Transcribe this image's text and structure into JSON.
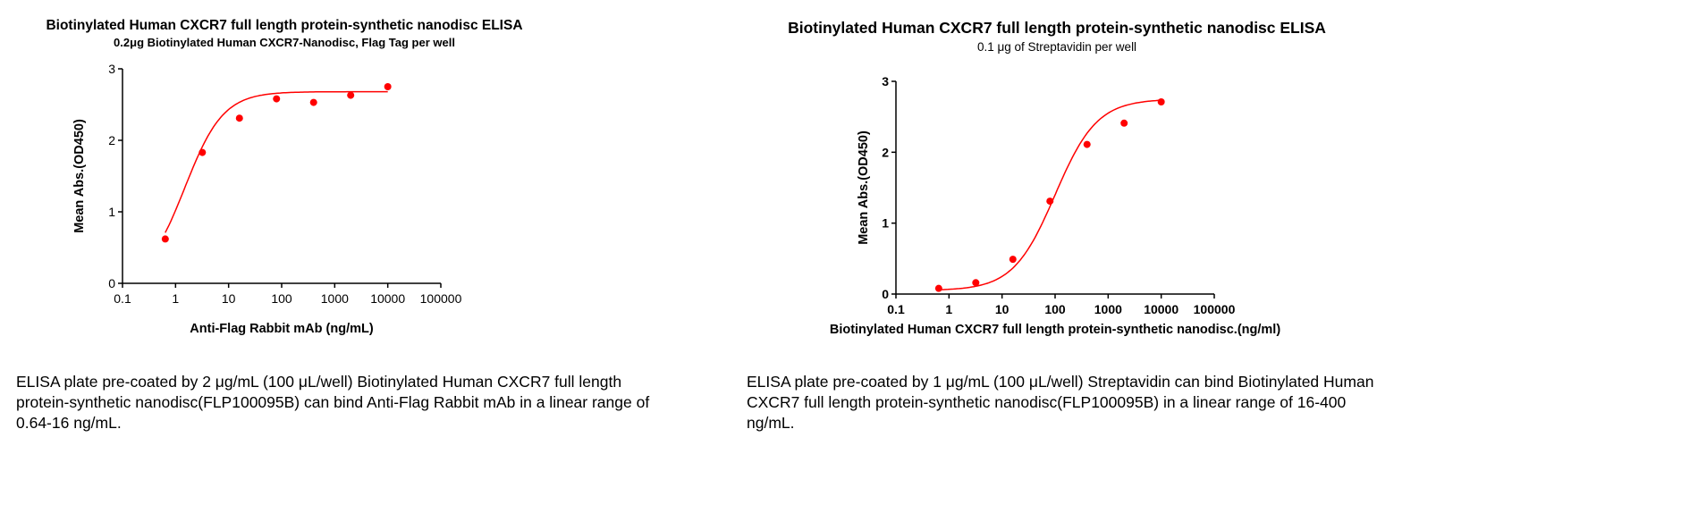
{
  "chart_data": [
    {
      "type": "scatter",
      "title": "Biotinylated Human CXCR7 full length protein-synthetic nanodisc ELISA",
      "subtitle": "0.2μg Biotinylated Human CXCR7-Nanodisc, Flag Tag per well",
      "xlabel": "Anti-Flag Rabbit mAb (ng/mL)",
      "ylabel": "Mean Abs.(OD450)",
      "xscale": "log",
      "xlim": [
        0.1,
        100000
      ],
      "ylim": [
        0,
        3
      ],
      "xticks": [
        "0.1",
        "1",
        "10",
        "100",
        "1000",
        "10000",
        "100000"
      ],
      "yticks": [
        "0",
        "1",
        "2",
        "3"
      ],
      "x": [
        0.64,
        3.2,
        16,
        80,
        400,
        2000,
        10000
      ],
      "y": [
        0.62,
        1.83,
        2.31,
        2.58,
        2.53,
        2.63,
        2.75
      ],
      "fit": "4PL",
      "color": "#ff0000",
      "grid": false
    },
    {
      "type": "scatter",
      "title": "Biotinylated Human CXCR7 full length protein-synthetic nanodisc ELISA",
      "subtitle": "0.1 μg of Streptavidin per well",
      "xlabel": "Biotinylated Human CXCR7 full length protein-synthetic nanodisc.(ng/ml)",
      "ylabel": "Mean Abs.(OD450)",
      "xscale": "log",
      "xlim": [
        0.1,
        100000
      ],
      "ylim": [
        0,
        3
      ],
      "xticks": [
        "0.1",
        "1",
        "10",
        "100",
        "1000",
        "10000",
        "100000"
      ],
      "yticks": [
        "0",
        "1",
        "2",
        "3"
      ],
      "x": [
        0.64,
        3.2,
        16,
        80,
        400,
        2000,
        10000
      ],
      "y": [
        0.08,
        0.16,
        0.49,
        1.31,
        2.11,
        2.41,
        2.71
      ],
      "fit": "4PL",
      "color": "#ff0000",
      "grid": false
    }
  ],
  "captions": [
    "ELISA plate pre-coated by 2 μg/mL (100 μL/well) Biotinylated Human CXCR7 full length protein-synthetic nanodisc(FLP100095B) can bind Anti-Flag Rabbit mAb in a linear range of 0.64-16 ng/mL.",
    "ELISA plate pre-coated by 1 μg/mL (100 μL/well) Streptavidin can bind Biotinylated Human CXCR7 full length protein-synthetic nanodisc(FLP100095B) in a linear range of 16-400 ng/mL."
  ]
}
